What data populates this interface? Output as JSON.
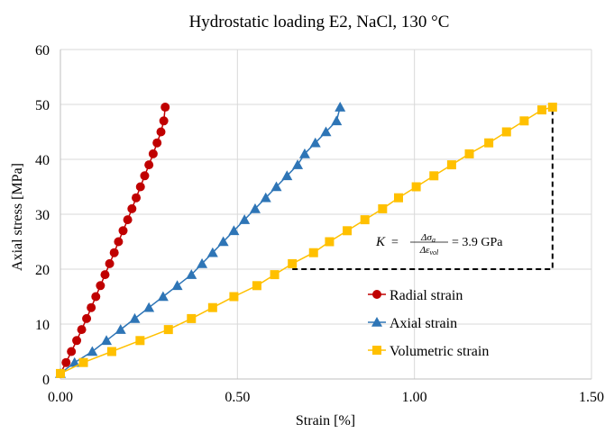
{
  "chart_data": {
    "type": "scatter",
    "title": "Hydrostatic loading E2, NaCl, 130 °C",
    "xlabel": "Strain [%]",
    "ylabel": "Axial stress [MPa]",
    "xlim": [
      0,
      1.5
    ],
    "ylim": [
      0,
      60
    ],
    "x_ticks": [
      0,
      0.5,
      1.0,
      1.5
    ],
    "x_tick_labels": [
      "0.00",
      "0.50",
      "1.00",
      "1.50"
    ],
    "y_ticks": [
      0,
      10,
      20,
      30,
      40,
      50,
      60
    ],
    "y_tick_labels": [
      "0",
      "10",
      "20",
      "30",
      "40",
      "50",
      "60"
    ],
    "grid": true,
    "legend_position": "right",
    "series": [
      {
        "name": "Radial strain",
        "color": "#C00000",
        "marker": "circle",
        "x": [
          0.0,
          0.016,
          0.031,
          0.046,
          0.06,
          0.074,
          0.087,
          0.1,
          0.113,
          0.126,
          0.139,
          0.152,
          0.164,
          0.177,
          0.19,
          0.202,
          0.214,
          0.226,
          0.238,
          0.25,
          0.262,
          0.273,
          0.284,
          0.292,
          0.296
        ],
        "y": [
          1,
          3,
          5,
          7,
          9,
          11,
          13,
          15,
          17,
          19,
          21,
          23,
          25,
          27,
          29,
          31,
          33,
          35,
          37,
          39,
          41,
          43,
          45,
          47,
          49.5
        ]
      },
      {
        "name": "Axial strain",
        "color": "#2E75B6",
        "marker": "triangle",
        "x": [
          0.0,
          0.04,
          0.09,
          0.13,
          0.17,
          0.21,
          0.25,
          0.29,
          0.33,
          0.37,
          0.4,
          0.43,
          0.46,
          0.49,
          0.52,
          0.55,
          0.58,
          0.61,
          0.64,
          0.67,
          0.69,
          0.72,
          0.75,
          0.78,
          0.79
        ],
        "y": [
          1,
          3,
          5,
          7,
          9,
          11,
          13,
          15,
          17,
          19,
          21,
          23,
          25,
          27,
          29,
          31,
          33,
          35,
          37,
          39,
          41,
          43,
          45,
          47,
          49.5
        ]
      },
      {
        "name": "Volumetric strain",
        "color": "#FFC000",
        "marker": "square",
        "x": [
          0.0,
          0.065,
          0.145,
          0.225,
          0.305,
          0.37,
          0.43,
          0.49,
          0.555,
          0.605,
          0.655,
          0.715,
          0.76,
          0.81,
          0.86,
          0.91,
          0.955,
          1.005,
          1.055,
          1.105,
          1.155,
          1.21,
          1.26,
          1.31,
          1.36,
          1.39
        ],
        "y": [
          1,
          3,
          5,
          7,
          9,
          11,
          13,
          15,
          17,
          19,
          21,
          23,
          25,
          27,
          29,
          31,
          33,
          35,
          37,
          39,
          41,
          43,
          45,
          47,
          49,
          49.5
        ]
      }
    ],
    "annotation": {
      "k_symbol": "K",
      "equals": "=",
      "numerator": "Δσ",
      "numerator_sub": "a",
      "denominator": "Δε",
      "denominator_sub": "vol",
      "result": "= 3.9 GPa",
      "triangle": {
        "x_start": 0.655,
        "x_end": 1.39,
        "y_low": 20,
        "y_high": 49.5
      }
    }
  }
}
